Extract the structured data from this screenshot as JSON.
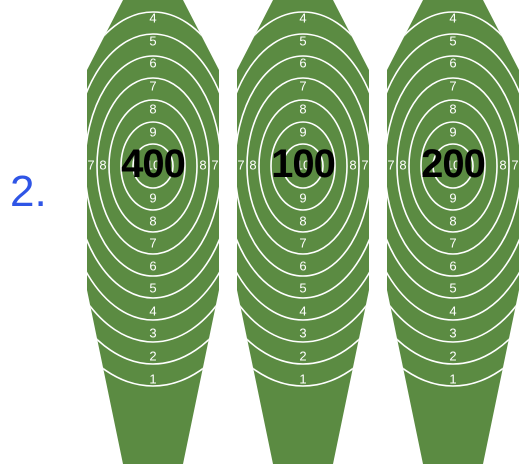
{
  "item_number": "2.",
  "colors": {
    "target_fill": "#5b8b42",
    "ring_line": "#ffffff",
    "item_number": "#2f55e6",
    "label": "#000000"
  },
  "targets": [
    {
      "label": "400",
      "rings_top": [
        "4",
        "5",
        "6",
        "7",
        "8",
        "9"
      ],
      "rings_bottom": [
        "9",
        "8",
        "7",
        "6",
        "5",
        "4",
        "3",
        "2",
        "1"
      ],
      "side_labels": [
        "7",
        "8",
        "10",
        "8",
        "7"
      ]
    },
    {
      "label": "100",
      "rings_top": [
        "4",
        "5",
        "6",
        "7",
        "8",
        "9"
      ],
      "rings_bottom": [
        "9",
        "8",
        "7",
        "6",
        "5",
        "4",
        "3",
        "2",
        "1"
      ],
      "side_labels": [
        "7",
        "8",
        "10",
        "8",
        "7"
      ]
    },
    {
      "label": "200",
      "rings_top": [
        "4",
        "5",
        "6",
        "7",
        "8",
        "9"
      ],
      "rings_bottom": [
        "9",
        "8",
        "7",
        "6",
        "5",
        "4",
        "3",
        "2",
        "1"
      ],
      "side_labels": [
        "7",
        "8",
        "10",
        "8",
        "7"
      ]
    }
  ]
}
